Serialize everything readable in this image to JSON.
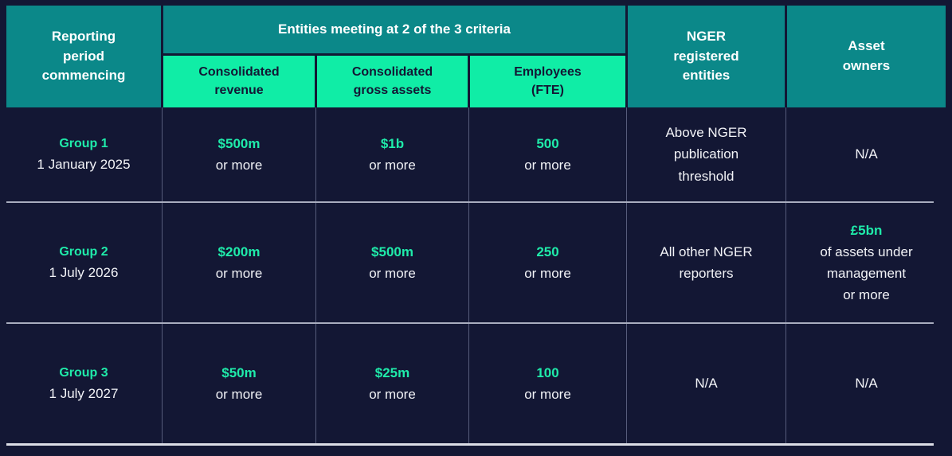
{
  "colors": {
    "navy": "#131734",
    "teal": "#0b8889",
    "mint": "#10eda6",
    "accent": "#1febaa",
    "white_text": "#f2f3f7",
    "row_divider": "#a9adbf",
    "cell_divider": "#575c7b",
    "bottom_border": "#dcdee6"
  },
  "table": {
    "header": {
      "reporting": "Reporting\nperiod\ncommencing",
      "entities_band": "Entities meeting at 2 of the 3 criteria",
      "sub_revenue": "Consolidated\nrevenue",
      "sub_assets": "Consolidated\ngross assets",
      "sub_employees": "Employees\n(FTE)",
      "nger": "NGER\nregistered\nentities",
      "asset_owners": "Asset\nowners"
    },
    "rows": [
      {
        "group": "Group 1",
        "date": "1 January 2025",
        "revenue_value": "$500m",
        "revenue_sub": "or more",
        "assets_value": "$1b",
        "assets_sub": "or more",
        "employees_value": "500",
        "employees_sub": "or more",
        "nger": "Above NGER\npublication\nthreshold",
        "asset_value": "",
        "asset_sub": "N/A"
      },
      {
        "group": "Group 2",
        "date": "1 July 2026",
        "revenue_value": "$200m",
        "revenue_sub": "or more",
        "assets_value": "$500m",
        "assets_sub": "or more",
        "employees_value": "250",
        "employees_sub": "or more",
        "nger": "All other NGER\nreporters",
        "asset_value": "£5bn",
        "asset_sub": "of assets under\nmanagement\nor more"
      },
      {
        "group": "Group 3",
        "date": "1 July 2027",
        "revenue_value": "$50m",
        "revenue_sub": "or more",
        "assets_value": "$25m",
        "assets_sub": "or more",
        "employees_value": "100",
        "employees_sub": "or more",
        "nger": "N/A",
        "asset_value": "",
        "asset_sub": "N/A"
      }
    ]
  },
  "chart_data": {
    "type": "table",
    "title": "",
    "column_group": {
      "label": "Entities meeting at 2 of the 3 criteria",
      "spans": [
        "Consolidated revenue",
        "Consolidated gross assets",
        "Employees (FTE)"
      ]
    },
    "columns": [
      "Reporting period commencing",
      "Consolidated revenue",
      "Consolidated gross assets",
      "Employees (FTE)",
      "NGER registered entities",
      "Asset owners"
    ],
    "rows": [
      [
        "Group 1 — 1 January 2025",
        "$500m or more",
        "$1b or more",
        "500 or more",
        "Above NGER publication threshold",
        "N/A"
      ],
      [
        "Group 2 — 1 July 2026",
        "$200m or more",
        "$500m or more",
        "250 or more",
        "All other NGER reporters",
        "£5bn of assets under management or more"
      ],
      [
        "Group 3 — 1 July 2027",
        "$50m or more",
        "$25m or more",
        "100 or more",
        "N/A",
        "N/A"
      ]
    ]
  }
}
